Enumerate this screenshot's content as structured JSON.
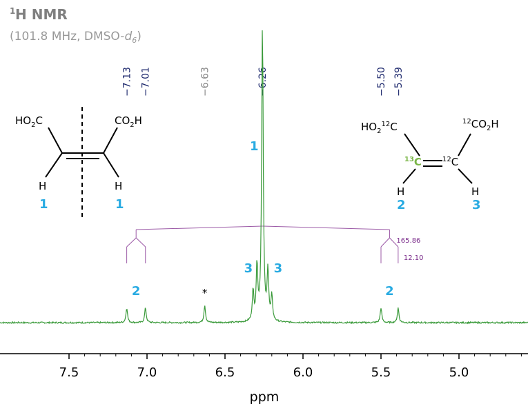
{
  "title": {
    "nucleus_sup": "1",
    "nucleus": "H NMR",
    "conditions_prefix": "(101.8 MHz, DMSO-",
    "solvent_d": "d",
    "solvent_sub": "6",
    "conditions_suffix": ")"
  },
  "colors": {
    "spectrum": "#3a9a3a",
    "peak_label_main": "#1f2a6e",
    "peak_label_minor": "#888888",
    "assign": "#29abe2",
    "coupling": "#9b59a6",
    "c13": "#7ab648"
  },
  "chart_data": {
    "type": "line",
    "xlabel": "ppm",
    "xlim": [
      7.9,
      4.65
    ],
    "ticks": [
      "7.5",
      "7.0",
      "6.5",
      "6.0",
      "5.5",
      "5.0"
    ],
    "tick_values": [
      7.5,
      7.0,
      6.5,
      6.0,
      5.5,
      5.0
    ],
    "peak_labels": [
      {
        "ppm": 7.13,
        "text": "−7.13",
        "minor": false
      },
      {
        "ppm": 7.01,
        "text": "−7.01",
        "minor": false
      },
      {
        "ppm": 6.63,
        "text": "−6.63",
        "minor": true
      },
      {
        "ppm": 6.26,
        "text": "−6.26",
        "minor": false
      },
      {
        "ppm": 5.5,
        "text": "−5.50",
        "minor": false
      },
      {
        "ppm": 5.39,
        "text": "−5.39",
        "minor": false
      }
    ],
    "peaks": [
      {
        "ppm": 7.13,
        "height": 0.06
      },
      {
        "ppm": 7.01,
        "height": 0.06
      },
      {
        "ppm": 6.63,
        "height": 0.07
      },
      {
        "ppm": 6.26,
        "height": 1.2
      },
      {
        "ppm": 6.295,
        "height": 0.22
      },
      {
        "ppm": 6.225,
        "height": 0.2
      },
      {
        "ppm": 6.32,
        "height": 0.12
      },
      {
        "ppm": 6.2,
        "height": 0.1
      },
      {
        "ppm": 5.5,
        "height": 0.06
      },
      {
        "ppm": 5.39,
        "height": 0.06
      }
    ],
    "couplings": [
      "165.86",
      "12.10"
    ],
    "peak_annotations": [
      "2",
      "*",
      "3",
      "3",
      "2"
    ]
  },
  "structures": {
    "left": {
      "ho2c": "HO",
      "ho2c_sub": "2",
      "ho2c_c": "C",
      "co2h": "CO",
      "co2h_sub": "2",
      "co2h_h": "H",
      "h_left": "H",
      "h_right": "H",
      "num_left": "1",
      "num_right": "1"
    },
    "right": {
      "ho2": "HO",
      "ho2_sub": "2",
      "c12a_sup": "12",
      "c12a": "C",
      "c12b_sup": "12",
      "c12b": "CO",
      "c12b_sub": "2",
      "c12b_h": "H",
      "c13_sup": "13",
      "c13": "C",
      "c12c_sup": "12",
      "c12c": "C",
      "h_left": "H",
      "h_right": "H",
      "num_left": "2",
      "num_right": "3"
    },
    "center_label": "1"
  }
}
